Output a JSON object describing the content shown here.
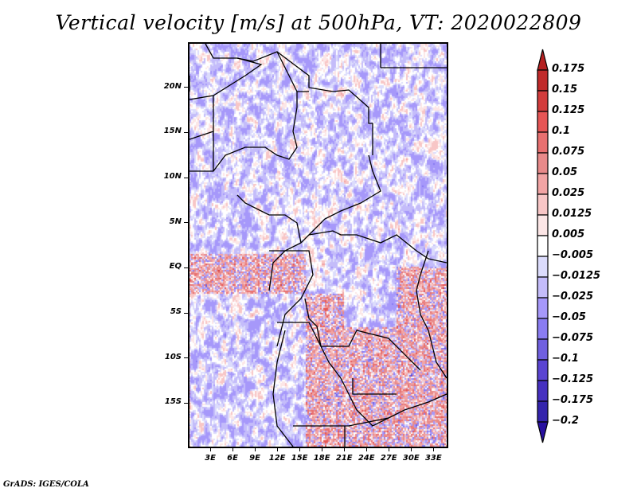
{
  "chart_data": {
    "type": "heatmap",
    "title": "Vertical velocity [m/s] at 500hPa, VT: 2020022809",
    "variable": "Vertical velocity",
    "units": "m/s",
    "level": "500hPa",
    "valid_time": "2020022809",
    "xlabel": "",
    "ylabel": "",
    "xlim_deg": [
      0,
      35
    ],
    "ylim_deg": [
      -20,
      25
    ],
    "x_ticks": [
      {
        "value": 3,
        "label": "3E"
      },
      {
        "value": 6,
        "label": "6E"
      },
      {
        "value": 9,
        "label": "9E"
      },
      {
        "value": 12,
        "label": "12E"
      },
      {
        "value": 15,
        "label": "15E"
      },
      {
        "value": 18,
        "label": "18E"
      },
      {
        "value": 21,
        "label": "21E"
      },
      {
        "value": 24,
        "label": "24E"
      },
      {
        "value": 27,
        "label": "27E"
      },
      {
        "value": 30,
        "label": "30E"
      },
      {
        "value": 33,
        "label": "33E"
      }
    ],
    "y_ticks": [
      {
        "value": 20,
        "label": "20N"
      },
      {
        "value": 15,
        "label": "15N"
      },
      {
        "value": 10,
        "label": "10N"
      },
      {
        "value": 5,
        "label": "5N"
      },
      {
        "value": 0,
        "label": "EQ"
      },
      {
        "value": -5,
        "label": "5S"
      },
      {
        "value": -10,
        "label": "10S"
      },
      {
        "value": -15,
        "label": "15S"
      }
    ],
    "colorbar": {
      "orientation": "vertical",
      "placement": "right",
      "extend": "both",
      "levels": [
        "0.175",
        "0.15",
        "0.125",
        "0.1",
        "0.075",
        "0.05",
        "0.025",
        "0.0125",
        "0.005",
        "−0.005",
        "−0.0125",
        "−0.025",
        "−0.05",
        "−0.075",
        "−0.1",
        "−0.125",
        "−0.175",
        "−0.2"
      ],
      "colors": [
        "#b42020",
        "#c02a2a",
        "#d23c3c",
        "#e65555",
        "#e87070",
        "#e88a8a",
        "#f2a4a4",
        "#f8c6c6",
        "#fce6e6",
        "#ffffff",
        "#dcdcfc",
        "#c4bcfa",
        "#a698fa",
        "#8a7cf2",
        "#7060e0",
        "#5a44d2",
        "#4630c0",
        "#3424ac",
        "#2810a0"
      ]
    },
    "regions_description": "Mixed red (ascent) and blue (descent) small-scale patterns over central Africa; intense alternating red/blue cells over Congo basin, Zambia, and East African rift; predominantly blue over central Congo and the Atlantic.",
    "grid": false
  },
  "footer": {
    "credit": "GrADS: IGES/COLA"
  }
}
